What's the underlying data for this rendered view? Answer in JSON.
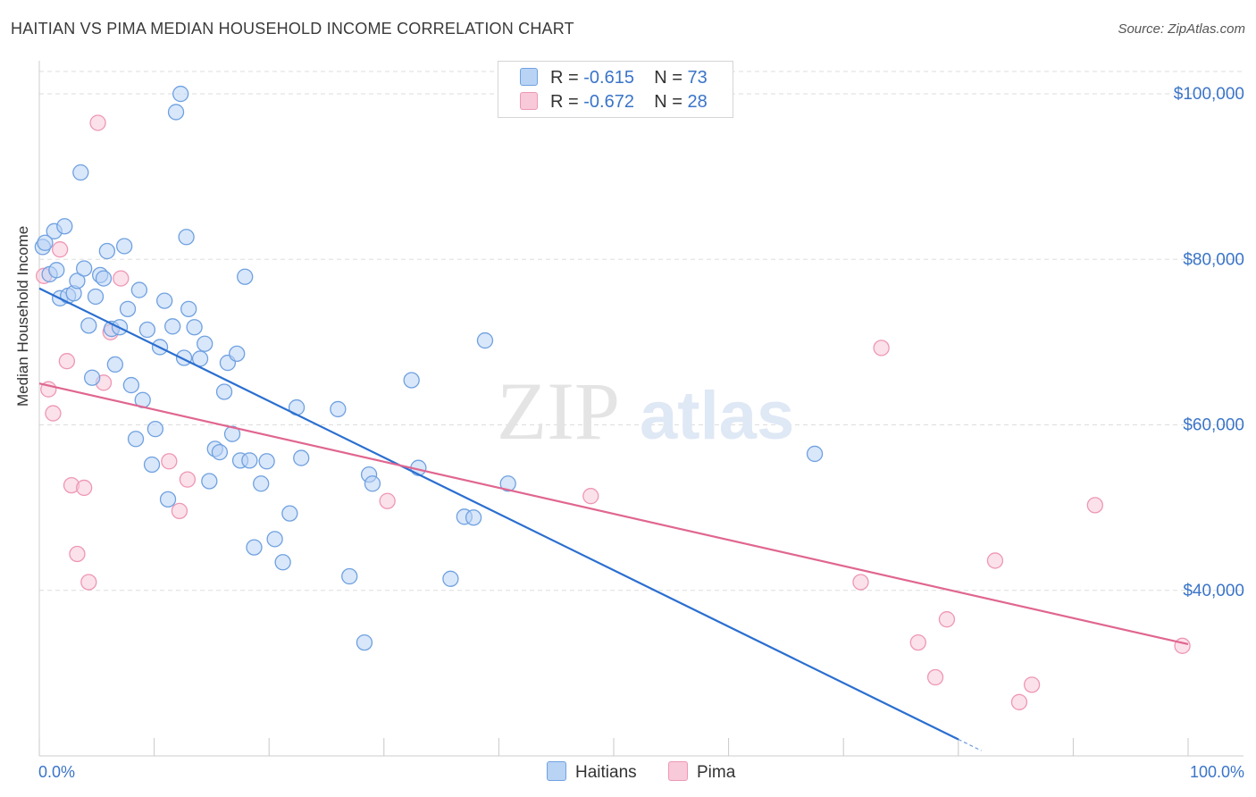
{
  "title": "HAITIAN VS PIMA MEDIAN HOUSEHOLD INCOME CORRELATION CHART",
  "source": "Source: ZipAtlas.com",
  "watermark": {
    "zip": "ZIP",
    "atlas": "atlas"
  },
  "colors": {
    "haitians_fill": "#b9d3f5",
    "haitians_stroke": "#6fa1e0",
    "haitians_line": "#2b6fd0",
    "pima_fill": "#f8c9d9",
    "pima_stroke": "#ee97b5",
    "pima_line": "#e06690",
    "axis_text": "#3a74c8",
    "grid": "#dddddd"
  },
  "legend": {
    "haitians": {
      "r_label": "R =",
      "r_value": "-0.615",
      "n_label": "N =",
      "n_value": "73"
    },
    "pima": {
      "r_label": "R =",
      "r_value": "-0.672",
      "n_label": "N =",
      "n_value": "28"
    }
  },
  "chart_data": {
    "type": "scatter",
    "xlabel": "",
    "ylabel": "Median Household Income",
    "xlim": [
      0,
      100
    ],
    "ylim": [
      20000,
      104000
    ],
    "x_tick_labels": [
      {
        "value": 0,
        "label": "0.0%"
      },
      {
        "value": 100,
        "label": "100.0%"
      }
    ],
    "y_ticks": [
      {
        "value": 40000,
        "label": "$40,000"
      },
      {
        "value": 60000,
        "label": "$60,000"
      },
      {
        "value": 80000,
        "label": "$80,000"
      },
      {
        "value": 100000,
        "label": "$100,000"
      }
    ],
    "grid": "horizontal dashed",
    "series": [
      {
        "name": "Haitians",
        "trend": {
          "x": [
            0,
            80
          ],
          "y": [
            76500,
            22000
          ]
        },
        "points": [
          [
            0.3,
            81500
          ],
          [
            0.9,
            78200
          ],
          [
            1.3,
            83400
          ],
          [
            1.5,
            78700
          ],
          [
            1.8,
            75300
          ],
          [
            2.2,
            84000
          ],
          [
            2.5,
            75600
          ],
          [
            3.0,
            75900
          ],
          [
            3.3,
            77400
          ],
          [
            3.6,
            90500
          ],
          [
            3.9,
            78900
          ],
          [
            4.3,
            72000
          ],
          [
            4.6,
            65700
          ],
          [
            4.9,
            75500
          ],
          [
            5.3,
            78100
          ],
          [
            5.6,
            77700
          ],
          [
            5.9,
            81000
          ],
          [
            6.3,
            71600
          ],
          [
            6.6,
            67300
          ],
          [
            7.0,
            71800
          ],
          [
            7.4,
            81600
          ],
          [
            7.7,
            74000
          ],
          [
            8.0,
            64800
          ],
          [
            8.4,
            58300
          ],
          [
            8.7,
            76300
          ],
          [
            9.0,
            63000
          ],
          [
            9.4,
            71500
          ],
          [
            9.8,
            55200
          ],
          [
            10.1,
            59500
          ],
          [
            10.5,
            69400
          ],
          [
            10.9,
            75000
          ],
          [
            11.2,
            51000
          ],
          [
            11.6,
            71900
          ],
          [
            11.9,
            97800
          ],
          [
            12.3,
            100000
          ],
          [
            12.6,
            68100
          ],
          [
            12.8,
            82700
          ],
          [
            13.0,
            74000
          ],
          [
            13.5,
            71800
          ],
          [
            14.0,
            68000
          ],
          [
            14.4,
            69800
          ],
          [
            14.8,
            53200
          ],
          [
            15.3,
            57100
          ],
          [
            15.7,
            56700
          ],
          [
            16.1,
            64000
          ],
          [
            16.4,
            67500
          ],
          [
            16.8,
            58900
          ],
          [
            17.2,
            68600
          ],
          [
            17.5,
            55700
          ],
          [
            17.9,
            77900
          ],
          [
            18.3,
            55700
          ],
          [
            18.7,
            45200
          ],
          [
            19.3,
            52900
          ],
          [
            19.8,
            55600
          ],
          [
            20.5,
            46200
          ],
          [
            21.2,
            43400
          ],
          [
            21.8,
            49300
          ],
          [
            22.4,
            62100
          ],
          [
            22.8,
            56000
          ],
          [
            26.0,
            61900
          ],
          [
            27.0,
            41700
          ],
          [
            28.3,
            33700
          ],
          [
            28.7,
            54000
          ],
          [
            29.0,
            52900
          ],
          [
            32.4,
            65400
          ],
          [
            33.0,
            54800
          ],
          [
            35.8,
            41400
          ],
          [
            37.0,
            48900
          ],
          [
            37.8,
            48800
          ],
          [
            38.8,
            70200
          ],
          [
            40.8,
            52900
          ],
          [
            67.5,
            56500
          ],
          [
            0.5,
            82000
          ]
        ]
      },
      {
        "name": "Pima",
        "trend": {
          "x": [
            0,
            100
          ],
          "y": [
            65000,
            33500
          ]
        },
        "points": [
          [
            0.4,
            78000
          ],
          [
            0.8,
            64300
          ],
          [
            1.2,
            61400
          ],
          [
            1.8,
            81200
          ],
          [
            2.4,
            67700
          ],
          [
            2.8,
            52700
          ],
          [
            3.3,
            44400
          ],
          [
            3.9,
            52400
          ],
          [
            4.3,
            41000
          ],
          [
            5.1,
            96500
          ],
          [
            5.6,
            65100
          ],
          [
            6.2,
            71200
          ],
          [
            7.1,
            77700
          ],
          [
            11.3,
            55600
          ],
          [
            12.2,
            49600
          ],
          [
            12.9,
            53400
          ],
          [
            30.3,
            50800
          ],
          [
            48.0,
            51400
          ],
          [
            71.5,
            41000
          ],
          [
            73.3,
            69300
          ],
          [
            76.5,
            33700
          ],
          [
            78.0,
            29500
          ],
          [
            79.0,
            36500
          ],
          [
            83.2,
            43600
          ],
          [
            85.3,
            26500
          ],
          [
            86.4,
            28600
          ],
          [
            91.9,
            50300
          ],
          [
            99.5,
            33300
          ]
        ]
      }
    ]
  },
  "bottom_legend": {
    "haitians": "Haitians",
    "pima": "Pima"
  }
}
